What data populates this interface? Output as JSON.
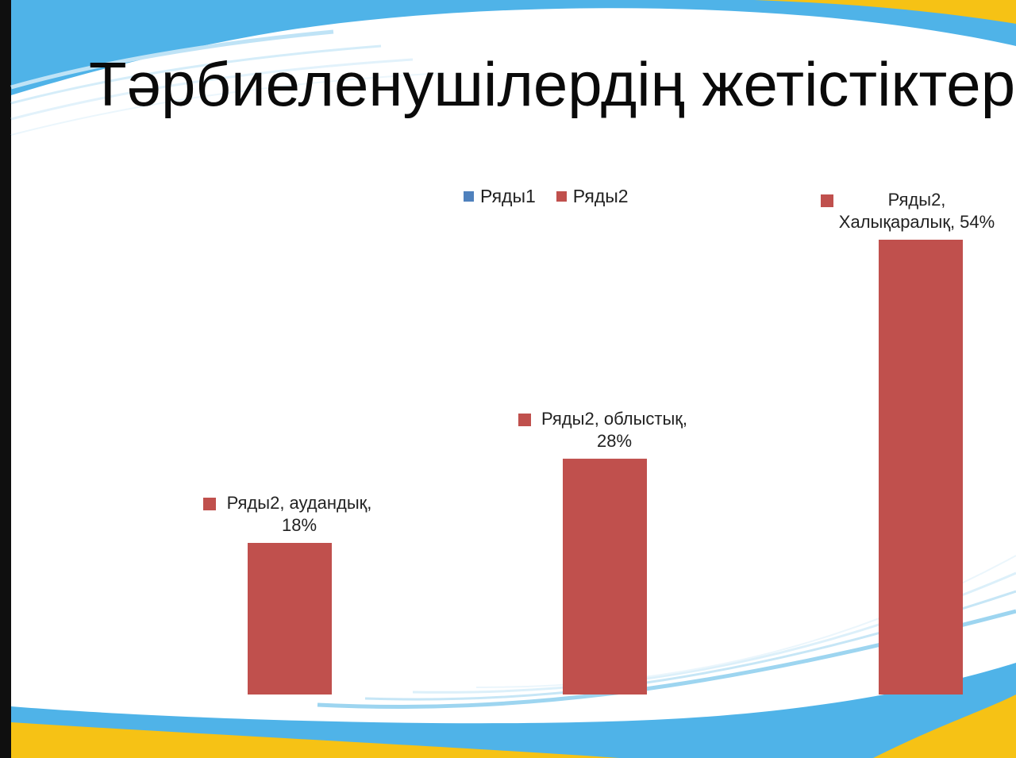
{
  "title": "Тәрбиеленушілердің жетістіктері",
  "chart_data": {
    "type": "bar",
    "categories": [
      "аудандық",
      "облыстық",
      "Халықаралық"
    ],
    "series": [
      {
        "name": "Ряды1",
        "values": [
          null,
          null,
          null
        ],
        "color": "#4f81bd"
      },
      {
        "name": "Ряды2",
        "values": [
          18,
          28,
          54
        ],
        "color": "#c0504d"
      }
    ],
    "value_unit": "%",
    "ylim": [
      0,
      54
    ],
    "legend": "top-center",
    "grid": false,
    "data_labels": [
      {
        "line1": "Ряды2, аудандық,",
        "line2": "18%"
      },
      {
        "line1": "Ряды2, облыстық,",
        "line2": "28%"
      },
      {
        "line1": "Ряды2,",
        "line2": "Халықаралық, 54%"
      }
    ]
  }
}
